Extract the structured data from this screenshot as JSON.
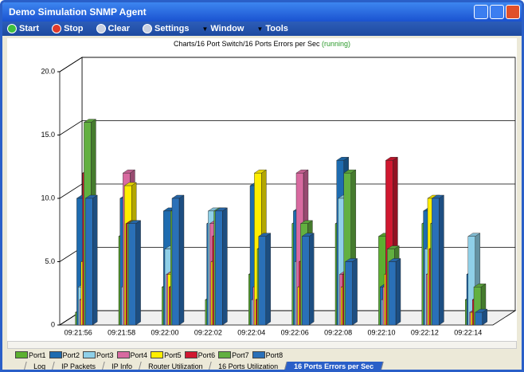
{
  "window": {
    "title": "Demo Simulation SNMP Agent"
  },
  "toolbar": [
    "Start",
    "Stop",
    "Clear",
    "Settings",
    "Window",
    "Tools"
  ],
  "chart_title": "Charts/16 Port Switch/16 Ports Errors per Sec",
  "chart_status": "(running)",
  "chart_data": {
    "type": "bar3d",
    "categories": [
      "09:21:56",
      "09:21:58",
      "09:22:00",
      "09:22:02",
      "09:22:04",
      "09:22:06",
      "09:22:08",
      "09:22:10",
      "09:22:12",
      "09:22:14"
    ],
    "series": [
      {
        "name": "Port1",
        "color": "#5cb030",
        "values": [
          1,
          7,
          3,
          2,
          4,
          8,
          8,
          7,
          8,
          2
        ]
      },
      {
        "name": "Port2",
        "color": "#1e6cb0",
        "values": [
          10,
          10,
          9,
          8,
          11,
          9,
          13,
          3,
          9,
          4
        ]
      },
      {
        "name": "Port3",
        "color": "#8fd0e8",
        "values": [
          3,
          3,
          6,
          9,
          2,
          5,
          10,
          2,
          6,
          7
        ]
      },
      {
        "name": "Port4",
        "color": "#d86aa0",
        "values": [
          2,
          12,
          4,
          8,
          3,
          12,
          4,
          3,
          4,
          1
        ]
      },
      {
        "name": "Port5",
        "color": "#ffee00",
        "values": [
          5,
          11,
          4,
          5,
          12,
          3,
          3,
          4,
          10,
          1
        ]
      },
      {
        "name": "Port6",
        "color": "#d01830",
        "values": [
          12,
          8,
          3,
          7,
          2,
          5,
          4,
          13,
          6,
          2
        ]
      },
      {
        "name": "Port7",
        "color": "#62b040",
        "values": [
          16,
          8,
          9,
          9,
          6,
          8,
          12,
          6,
          8,
          3
        ]
      },
      {
        "name": "Port8",
        "color": "#2a70b8",
        "values": [
          10,
          8,
          10,
          9,
          7,
          7,
          5,
          5,
          10,
          1
        ]
      }
    ],
    "ylim": [
      0,
      20
    ],
    "yticks": [
      0,
      {
        "value": 5,
        "label": "5.0"
      },
      {
        "value": 10,
        "label": "10.0"
      },
      {
        "value": 15,
        "label": "15.0"
      },
      {
        "value": 20,
        "label": "20.0"
      }
    ],
    "grid": true
  },
  "tabs": [
    "Log",
    "IP Packets",
    "IP Info",
    "Router Utilization",
    "16 Ports Utilization",
    "16 Ports Errors per Sec"
  ]
}
